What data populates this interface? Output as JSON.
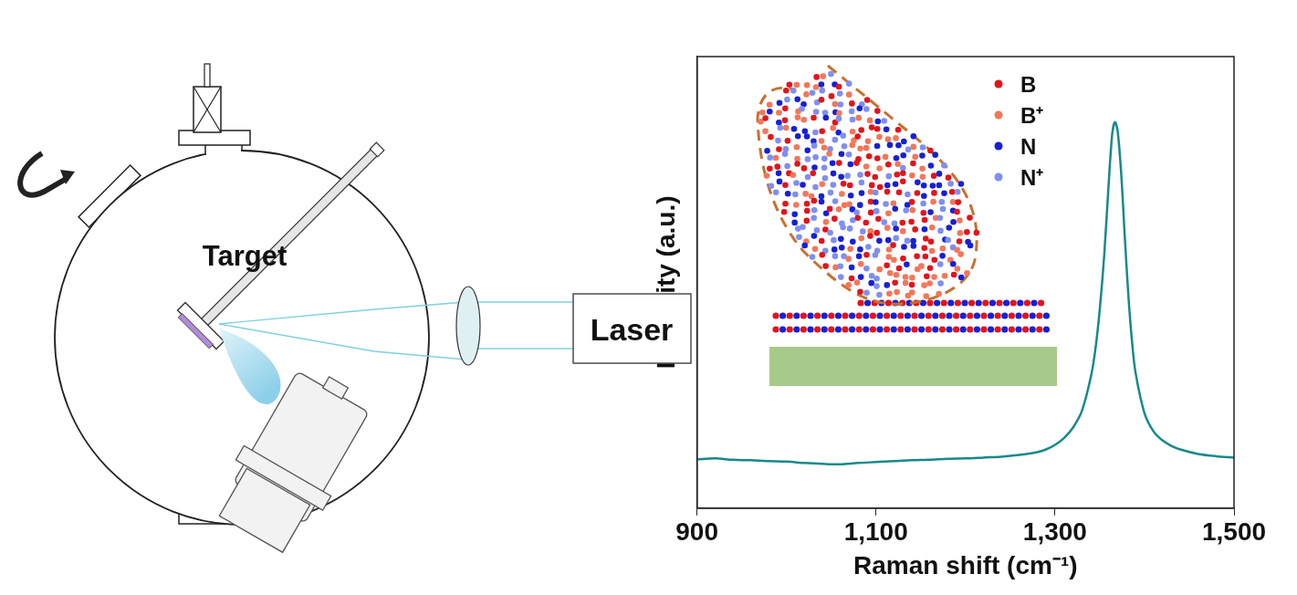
{
  "chart_data": {
    "type": "line",
    "x_label": "Raman shift (cm⁻¹)",
    "y_label": "Intensity (a.u.)",
    "x": [
      900,
      920,
      940,
      960,
      980,
      1000,
      1020,
      1040,
      1060,
      1080,
      1100,
      1120,
      1140,
      1160,
      1180,
      1200,
      1220,
      1240,
      1260,
      1280,
      1290,
      1300,
      1310,
      1320,
      1330,
      1340,
      1345,
      1350,
      1355,
      1360,
      1364,
      1367,
      1370,
      1374,
      1378,
      1382,
      1386,
      1390,
      1400,
      1410,
      1420,
      1430,
      1440,
      1460,
      1480,
      1500
    ],
    "values": [
      0.108,
      0.11,
      0.107,
      0.106,
      0.104,
      0.103,
      0.1,
      0.098,
      0.097,
      0.1,
      0.102,
      0.104,
      0.106,
      0.107,
      0.109,
      0.11,
      0.112,
      0.114,
      0.118,
      0.124,
      0.13,
      0.14,
      0.155,
      0.178,
      0.215,
      0.29,
      0.35,
      0.44,
      0.56,
      0.72,
      0.83,
      0.855,
      0.835,
      0.74,
      0.6,
      0.47,
      0.37,
      0.3,
      0.21,
      0.17,
      0.15,
      0.138,
      0.13,
      0.12,
      0.115,
      0.112
    ],
    "color": "#17898a",
    "xlim": [
      900,
      1500
    ],
    "xticks": [
      900,
      1100,
      1300,
      1500
    ],
    "ylim": [
      0,
      1
    ],
    "tick_labels": "x",
    "grid": false,
    "inset_legend": [
      {
        "name": "B",
        "color": "#e3141c"
      },
      {
        "name": "B⁺",
        "color": "#f2775a"
      },
      {
        "name": "N",
        "color": "#1620d6"
      },
      {
        "name": "N⁺",
        "color": "#7f8ff0"
      }
    ]
  },
  "diagram": {
    "target_label": "Target",
    "laser_label": "Laser"
  }
}
